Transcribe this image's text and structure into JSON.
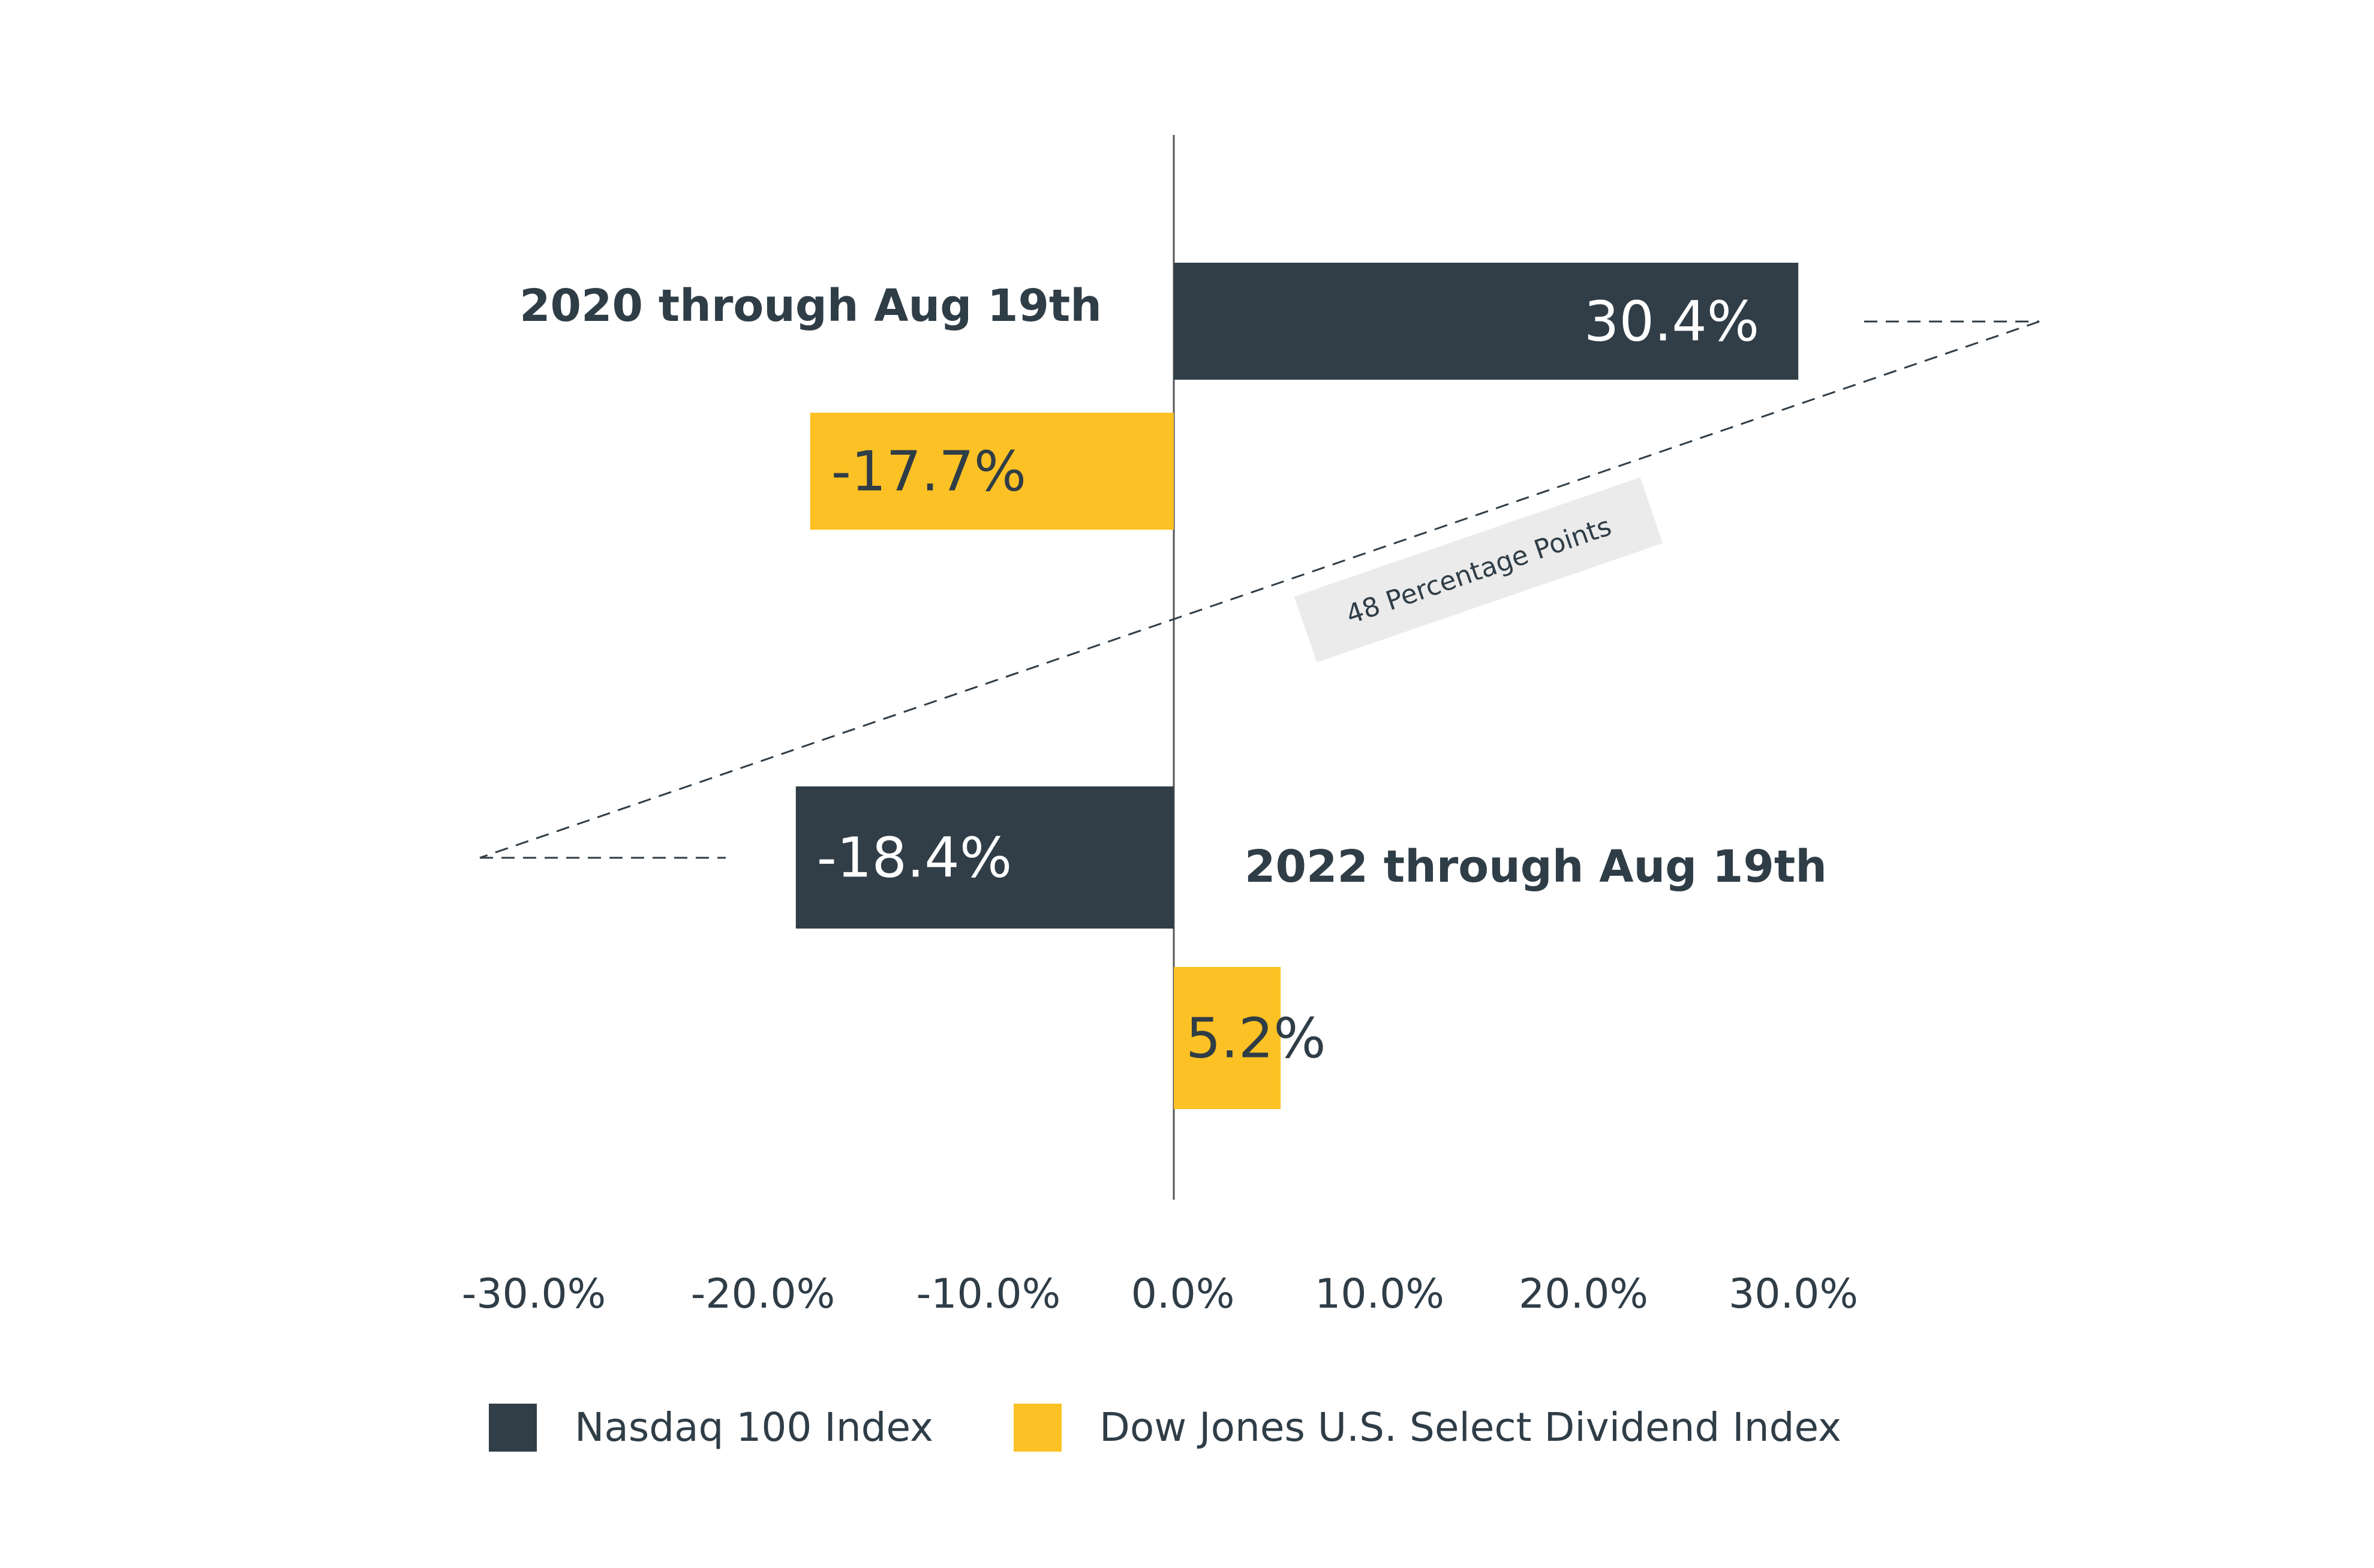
{
  "chart_data": {
    "type": "bar",
    "orientation": "horizontal",
    "categories": [
      "2020 through Aug 19th",
      "2022 through Aug 19th"
    ],
    "series": [
      {
        "name": "Nasdaq 100 Index",
        "color": "#313e48",
        "values": [
          30.4,
          -18.4
        ],
        "labels": [
          "30.4%",
          "-18.4%"
        ]
      },
      {
        "name": "Dow Jones U.S. Select Dividend Index",
        "color": "#fcc124",
        "values": [
          -17.7,
          5.2
        ],
        "labels": [
          "-17.7%",
          "5.2%"
        ]
      }
    ],
    "xlim": [
      -30,
      30
    ],
    "xticks": [
      -30,
      -20,
      -10,
      0,
      10,
      20,
      30
    ],
    "xtick_labels": [
      "-30.0%",
      "-20.0%",
      "-10.0%",
      "0.0%",
      "10.0%",
      "20.0%",
      "30.0%"
    ],
    "annotation": {
      "text": "48 Percentage Points",
      "from": 30.4,
      "to": -18.4
    },
    "legend_position": "bottom",
    "grid": false
  }
}
